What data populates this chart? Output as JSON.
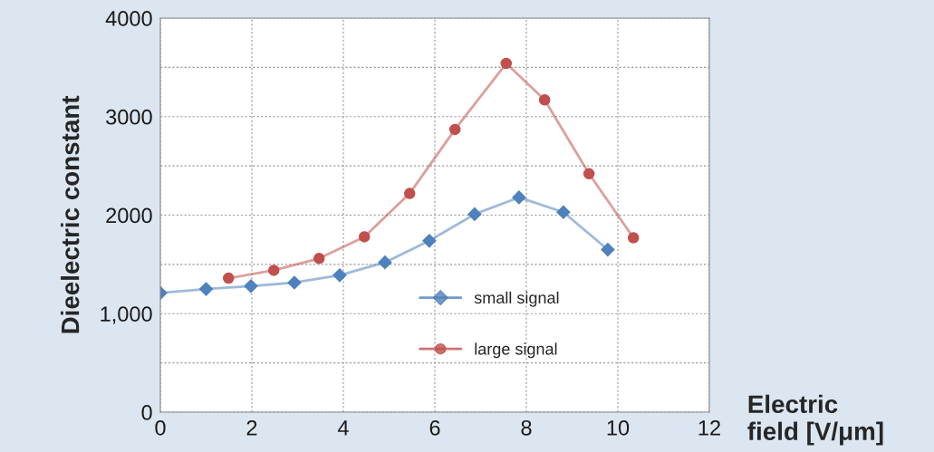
{
  "chart_data": {
    "type": "line",
    "xlabel": "Electric\nfield [V/μm]",
    "ylabel": "Dieelectric constant",
    "series": [
      {
        "name": "small signal",
        "color": "#4f81bd",
        "marker": "diamond",
        "x": [
          0,
          1.0,
          1.98,
          2.93,
          3.92,
          4.91,
          5.88,
          6.87,
          7.84,
          8.81,
          9.78
        ],
        "values": [
          1210,
          1250,
          1280,
          1315,
          1390,
          1520,
          1740,
          2010,
          2180,
          2030,
          1650
        ]
      },
      {
        "name": "large signal",
        "color": "#c0504d",
        "marker": "circle",
        "x": [
          1.49,
          2.48,
          3.47,
          4.46,
          5.45,
          6.44,
          7.56,
          8.4,
          9.37,
          10.34
        ],
        "values": [
          1360,
          1440,
          1560,
          1780,
          2220,
          2870,
          3540,
          3170,
          2420,
          1770
        ]
      }
    ],
    "xlim": [
      0,
      12
    ],
    "xticks": [
      0,
      2,
      4,
      6,
      8,
      10,
      12
    ],
    "ylim": [
      0,
      4000
    ],
    "yticks": [
      0,
      {
        "value": 500,
        "label": null
      },
      {
        "value": 1000,
        "label": "1,000"
      },
      {
        "value": 1500,
        "label": null
      },
      2000,
      {
        "value": 2500,
        "label": null
      },
      3000,
      {
        "value": 3500,
        "label": null
      },
      4000
    ],
    "grid": true,
    "legend": "bottom"
  }
}
